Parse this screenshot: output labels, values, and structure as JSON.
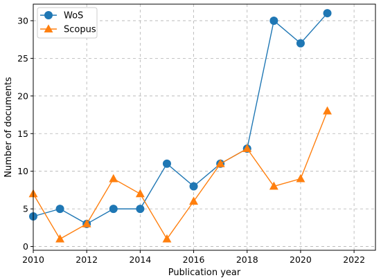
{
  "chart_data": {
    "type": "line",
    "title": "",
    "xlabel": "Publication year",
    "ylabel": "Number of documents",
    "x": [
      2010,
      2011,
      2012,
      2013,
      2014,
      2015,
      2016,
      2017,
      2018,
      2019,
      2020,
      2021
    ],
    "xlim": [
      2010,
      2022.8
    ],
    "ylim": [
      -0.5,
      32.2
    ],
    "xticks": [
      2010,
      2012,
      2014,
      2016,
      2018,
      2020,
      2022
    ],
    "yticks": [
      0,
      5,
      10,
      15,
      20,
      25,
      30
    ],
    "grid": true,
    "legend_position": "top-left",
    "series": [
      {
        "name": "WoS",
        "color": "#1f77b4",
        "marker": "circle",
        "values": [
          4,
          5,
          3,
          5,
          5,
          11,
          8,
          11,
          13,
          30,
          27,
          31
        ]
      },
      {
        "name": "Scopus",
        "color": "#ff7f0e",
        "marker": "triangle",
        "values": [
          7,
          1,
          3,
          9,
          7,
          1,
          6,
          11,
          13,
          8,
          9,
          18
        ]
      }
    ]
  }
}
